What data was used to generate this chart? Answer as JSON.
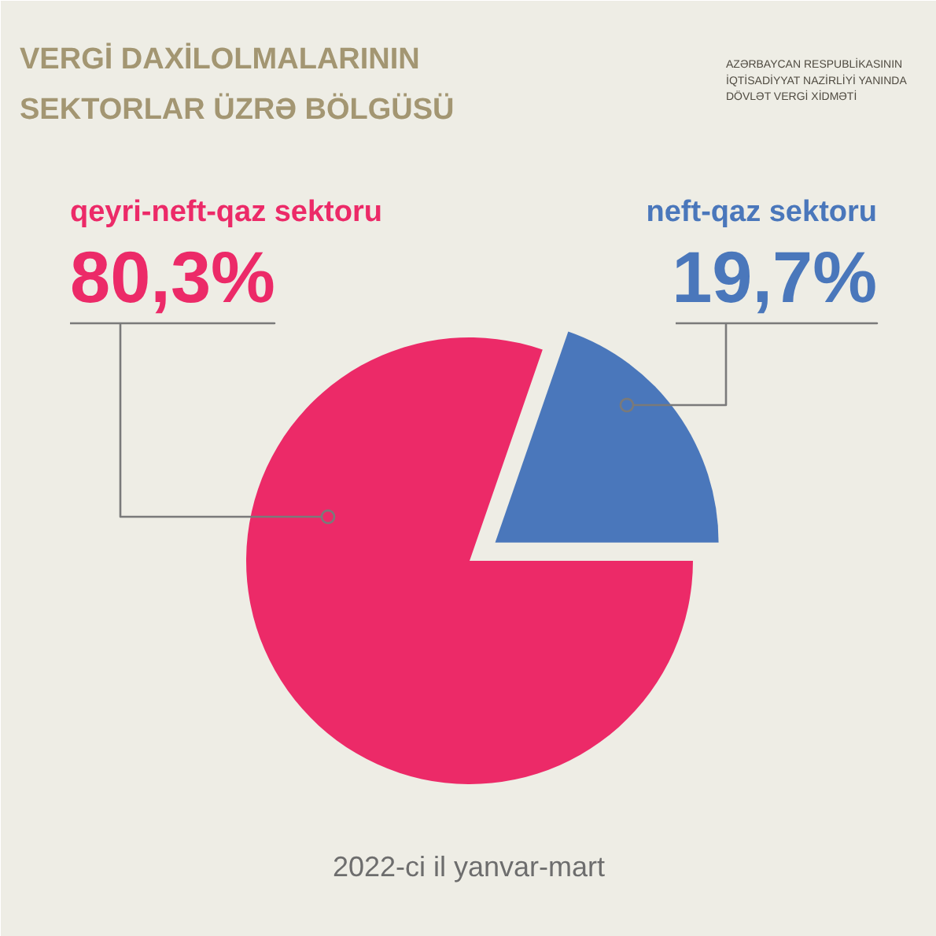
{
  "chart_data": {
    "type": "pie",
    "title": "VERGİ DAXİLOLMALARININ\nSEKTORLAR ÜZRƏ BÖLGÜSÜ",
    "categories": [
      "qeyri-neft-qaz sektoru",
      "neft-qaz sektoru"
    ],
    "values": [
      80.3,
      19.7
    ],
    "colors": [
      "#ec2a68",
      "#4a77bb"
    ],
    "value_labels": [
      "80,3%",
      "19,7%"
    ],
    "annotations": [
      "AZƏRBAYCAN RESPUBLİKASININ\nİQTİSADİYYAT NAZİRLİYİ YANINDA\nDÖVLƏT VERGİ XİDMƏTİ",
      "2022-ci il yanvar-mart"
    ]
  }
}
